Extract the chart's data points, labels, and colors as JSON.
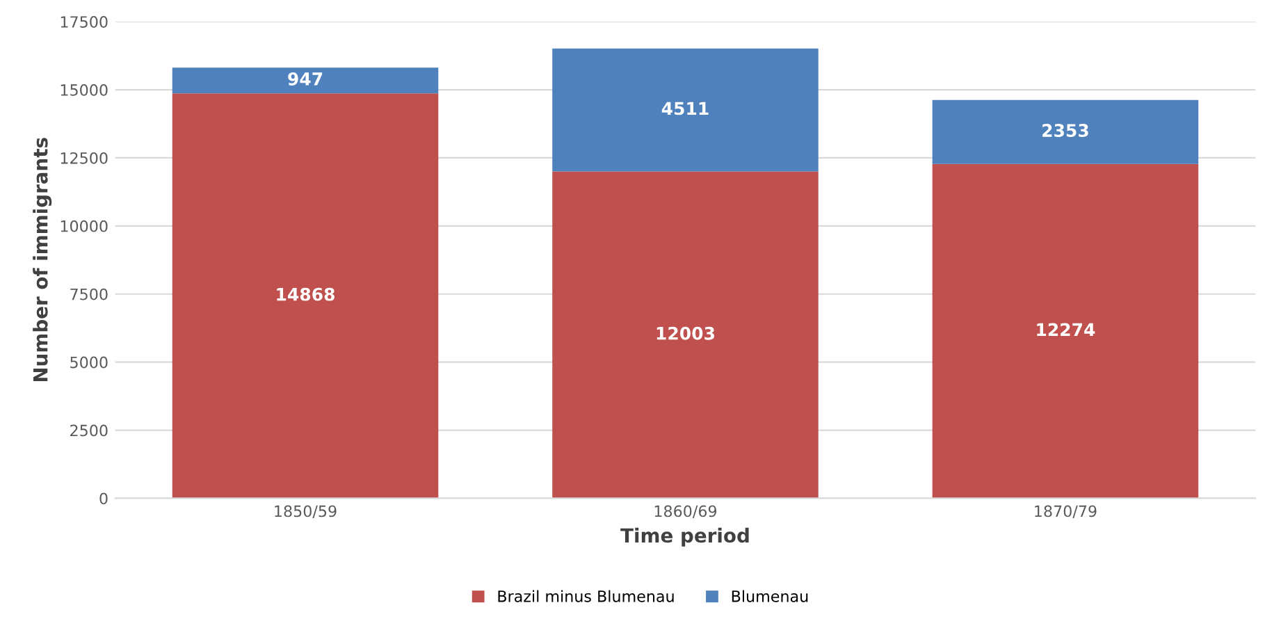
{
  "chart_data": {
    "type": "bar",
    "stacked": true,
    "xlabel": "Time period",
    "ylabel": "Number of immigrants",
    "categories": [
      "1850/59",
      "1860/69",
      "1870/79"
    ],
    "series": [
      {
        "name": "Brazil minus Blumenau",
        "color": "#c0504d",
        "values": [
          14868,
          12003,
          12274
        ]
      },
      {
        "name": "Blumenau",
        "color": "#4f81bd",
        "values": [
          947,
          4511,
          2353
        ]
      }
    ],
    "ylim": [
      0,
      17500
    ],
    "yticks": [
      0,
      2500,
      5000,
      7500,
      10000,
      12500,
      15000,
      17500
    ],
    "grid": "y",
    "legend": "bottom",
    "data_labels": true
  }
}
